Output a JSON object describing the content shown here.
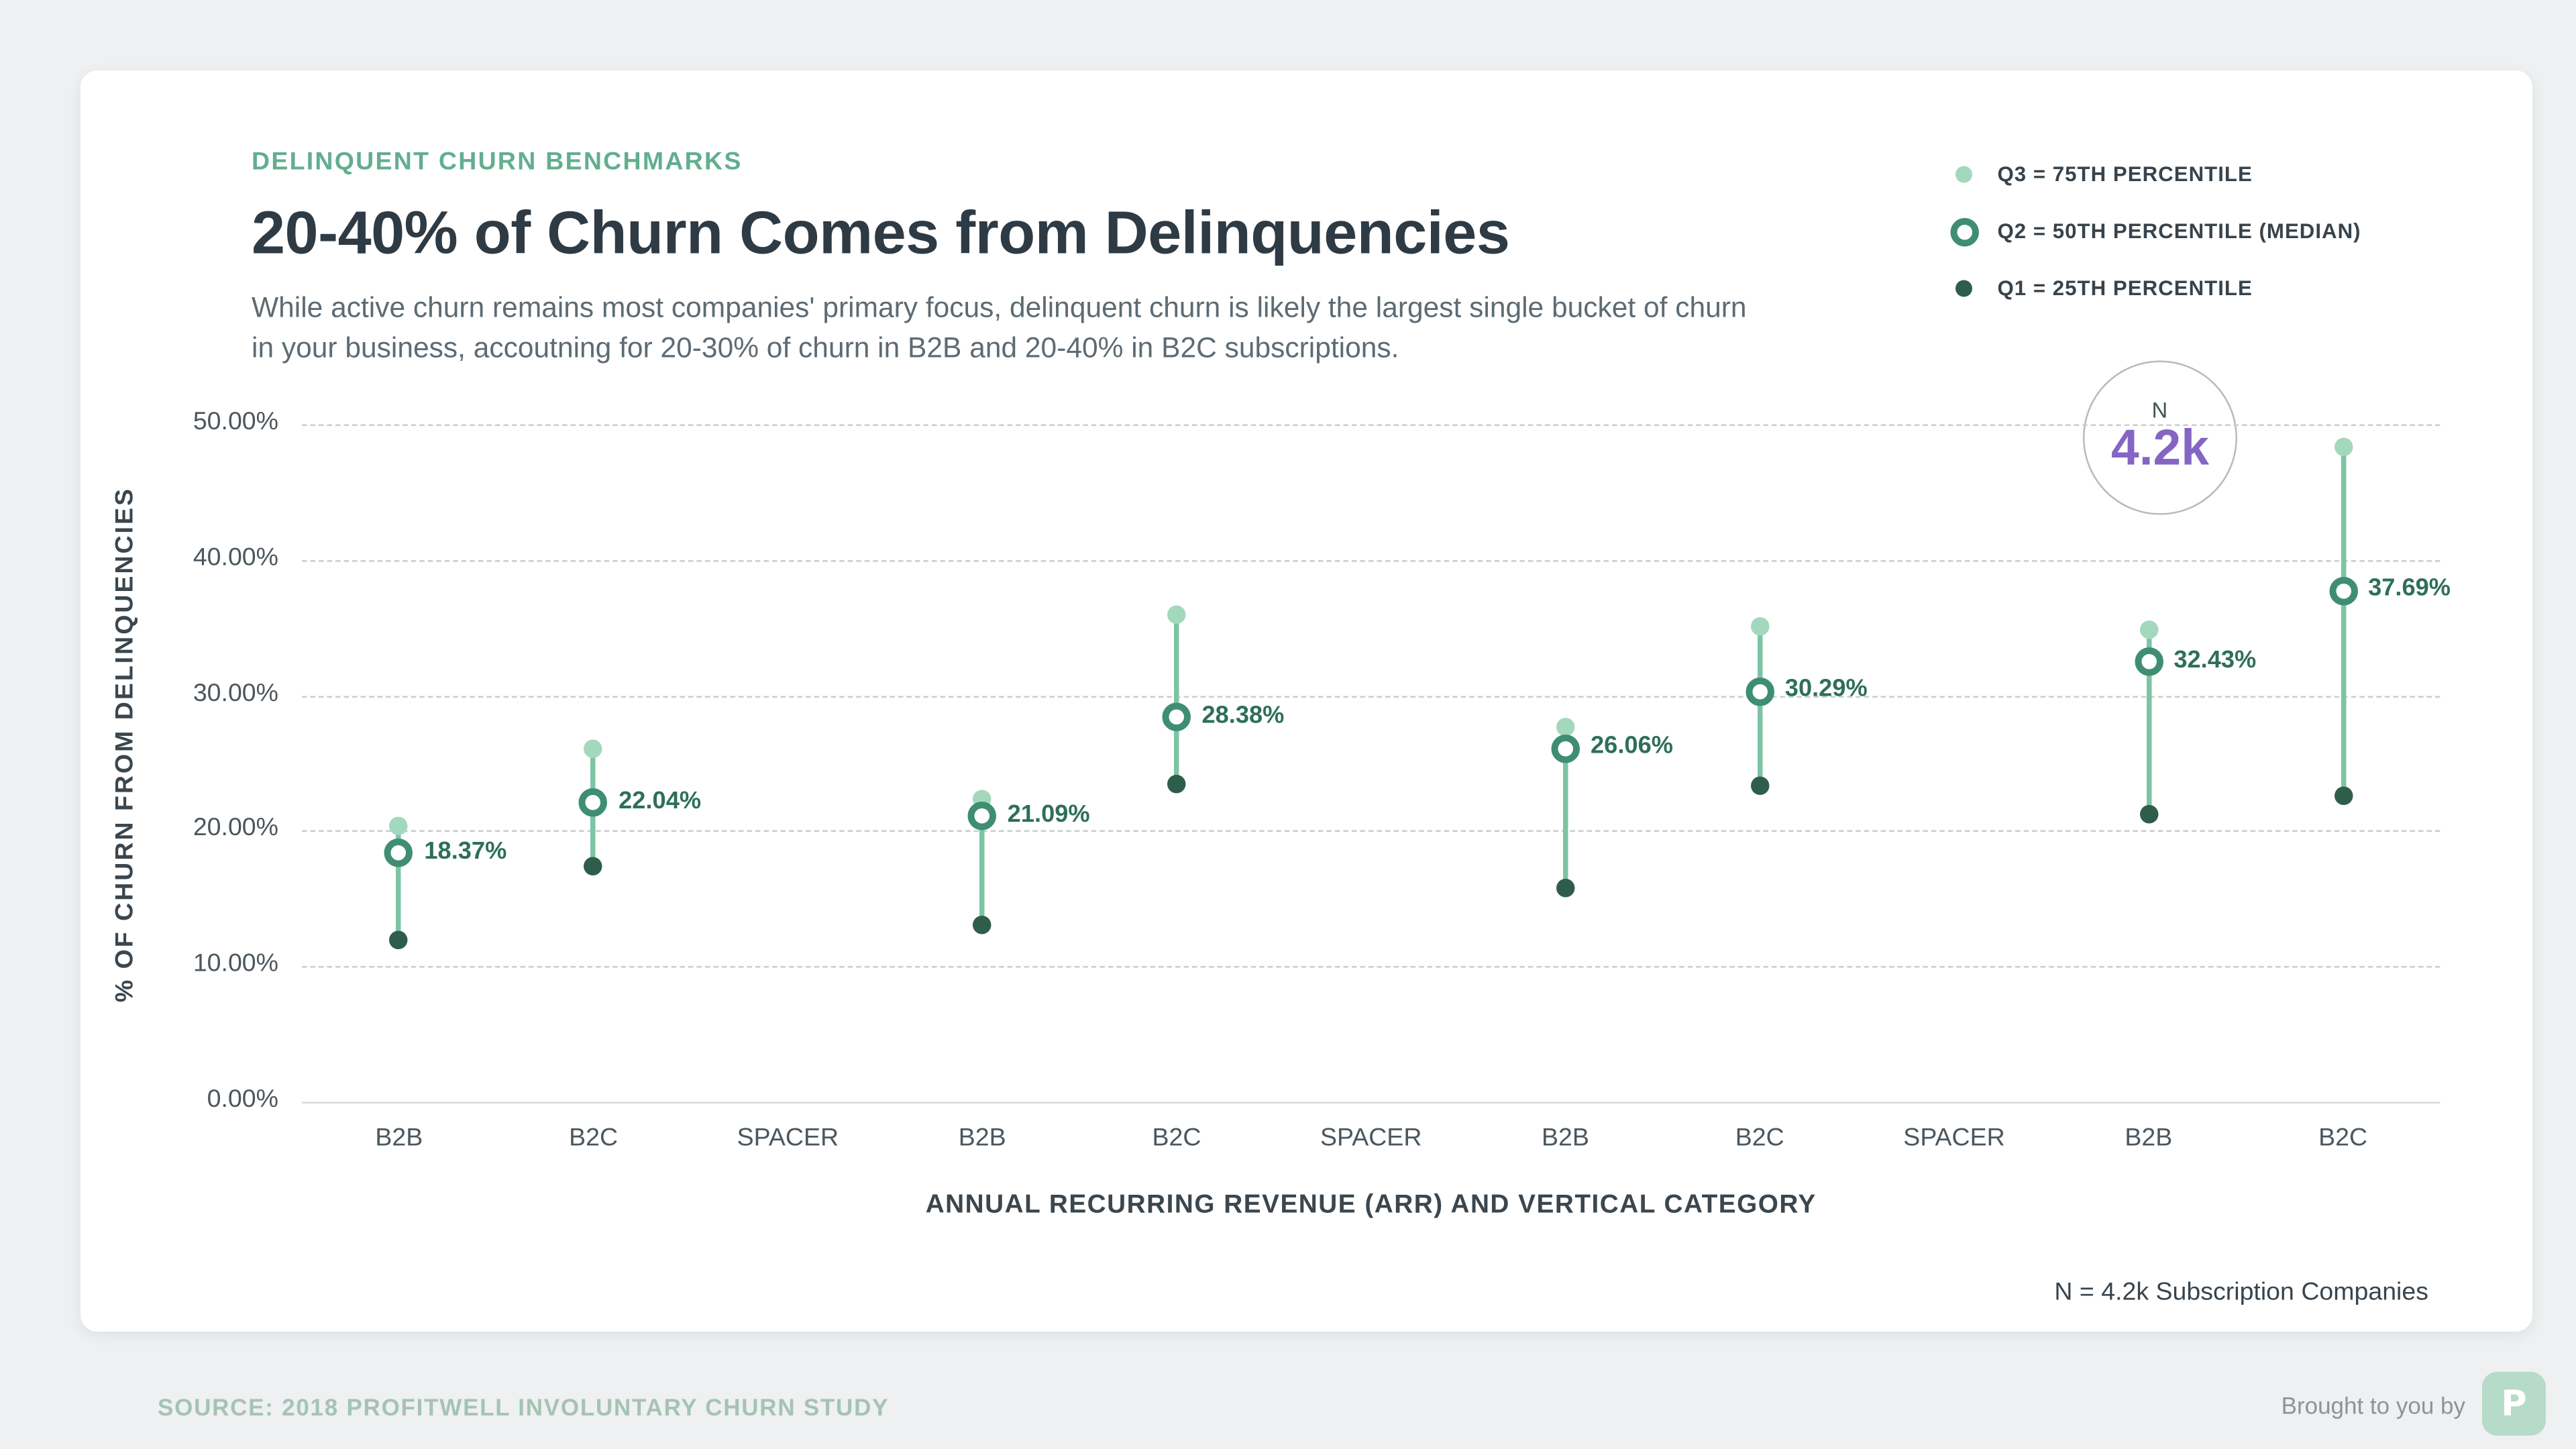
{
  "header": {
    "kicker": "DELINQUENT CHURN BENCHMARKS",
    "title": "20-40% of Churn Comes from Delinquencies",
    "subtitle": "While active churn remains most companies' primary focus, delinquent churn is likely the largest single bucket of churn in your business, accoutning for 20-30% of churn in B2B and 20-40% in B2C subscriptions."
  },
  "legend": {
    "items": [
      {
        "marker": "q3-dot",
        "label": "Q3 = 75TH PERCENTILE"
      },
      {
        "marker": "q2-ring",
        "label": "Q2 = 50TH PERCENTILE (MEDIAN)"
      },
      {
        "marker": "q1-dot",
        "label": "Q1 = 25TH PERCENTILE"
      }
    ]
  },
  "n_badge": {
    "label": "N",
    "value": "4.2k"
  },
  "chart_data": {
    "type": "scatter",
    "subtype": "quartile-dot-range",
    "title": "20-40% of Churn Comes from Delinquencies",
    "xlabel": "ANNUAL RECURRING REVENUE (ARR) AND VERTICAL CATEGORY",
    "ylabel": "% OF CHURN FROM DELINQUENCIES",
    "ylim": [
      0,
      50
    ],
    "grid": "horizontal-dashed",
    "legend_position": "top-right",
    "yticks": [
      {
        "value": 0,
        "label": "0.00%"
      },
      {
        "value": 10,
        "label": "10.00%"
      },
      {
        "value": 20,
        "label": "20.00%"
      },
      {
        "value": 30,
        "label": "30.00%"
      },
      {
        "value": 40,
        "label": "40.00%"
      },
      {
        "value": 50,
        "label": "50.00%"
      }
    ],
    "x_categories": [
      "B2B",
      "B2C",
      "SPACER",
      "B2B",
      "B2C",
      "SPACER",
      "B2B",
      "B2C",
      "SPACER",
      "B2B",
      "B2C"
    ],
    "groups": [
      {
        "x_index": 0,
        "category": "B2B",
        "q1": 12.0,
        "q2": 18.37,
        "q3": 20.3,
        "q2_label": "18.37%"
      },
      {
        "x_index": 1,
        "category": "B2C",
        "q1": 17.4,
        "q2": 22.04,
        "q3": 26.0,
        "q2_label": "22.04%"
      },
      {
        "x_index": 3,
        "category": "B2B",
        "q1": 13.0,
        "q2": 21.09,
        "q3": 22.3,
        "q2_label": "21.09%"
      },
      {
        "x_index": 4,
        "category": "B2C",
        "q1": 23.5,
        "q2": 28.38,
        "q3": 35.9,
        "q2_label": "28.38%"
      },
      {
        "x_index": 6,
        "category": "B2B",
        "q1": 15.8,
        "q2": 26.06,
        "q3": 27.7,
        "q2_label": "26.06%"
      },
      {
        "x_index": 7,
        "category": "B2C",
        "q1": 23.3,
        "q2": 30.29,
        "q3": 35.1,
        "q2_label": "30.29%"
      },
      {
        "x_index": 9,
        "category": "B2B",
        "q1": 21.2,
        "q2": 32.43,
        "q3": 34.8,
        "q2_label": "32.43%"
      },
      {
        "x_index": 10,
        "category": "B2C",
        "q1": 22.6,
        "q2": 37.69,
        "q3": 48.3,
        "q2_label": "37.69%"
      }
    ]
  },
  "annotations": {
    "n_note": "N = 4.2k Subscription Companies"
  },
  "footer": {
    "source": "SOURCE: 2018 PROFITWELL INVOLUNTARY CHURN STUDY",
    "brought": "Brought to you by",
    "logo_glyph": "P"
  },
  "colors": {
    "accent_green": "#62ae8f",
    "title": "#2e3b45",
    "q3": "#a3d8bd",
    "q2_ring": "#3f8e73",
    "q1": "#2f5d4c",
    "range_line": "#7cc4a3",
    "value_label": "#2e7057",
    "purple": "#8465c4"
  }
}
